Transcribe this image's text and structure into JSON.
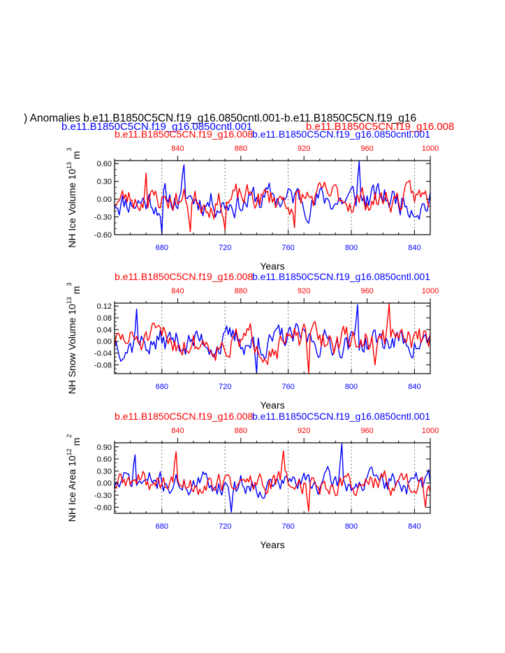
{
  "header": {
    "main_title": ") Anomalies b.e11.B1850C5CN.f19_g16.0850cntl.001-b.e11.B1850C5CN.f19_g16",
    "left_case": "b.e11.B1850C5CN.f19_g16.0850cntl.001",
    "right_case": "b.e11.B1850C5CN.f19_g16.008"
  },
  "colors": {
    "blue": "#0000ff",
    "red": "#ff0000",
    "black": "#000000",
    "grid": "#555555"
  },
  "chart_data": [
    {
      "type": "line",
      "ylabel_main": "NH Ice Volume 10",
      "ylabel_exp": "13",
      "ylabel_unit": " m",
      "ylabel_unit_exp": "3",
      "xlabel": "Years",
      "top_label_red": "b.e11.B1850C5CN.f19_g16.008",
      "top_label_blue": "b.e11.B1850C5CN.f19_g16.0850cntl.001",
      "ylim": [
        -0.6,
        0.65
      ],
      "yticks": [
        "0.60",
        "0.30",
        "0.00",
        "-0.30",
        "-0.60"
      ],
      "ytick_values": [
        0.6,
        0.3,
        0.0,
        -0.3,
        -0.6
      ],
      "bottom_axis": {
        "range": [
          650,
          850
        ],
        "ticks": [
          680,
          720,
          760,
          800,
          840
        ]
      },
      "top_axis": {
        "range": [
          800,
          1000
        ],
        "ticks": [
          840,
          880,
          920,
          960,
          1000
        ]
      },
      "series": [
        {
          "name": "b.e11.B1850C5CN.f19_g16.0850cntl.001",
          "color": "#0000ff",
          "seed": 11,
          "amplitude": 0.26,
          "spikes": [
            [
              680,
              -0.58
            ],
            [
              694,
              0.58
            ],
            [
              805,
              0.64
            ]
          ]
        },
        {
          "name": "b.e11.B1850C5CN.f19_g16.008",
          "color": "#ff0000",
          "seed": 23,
          "amplitude": 0.24,
          "spikes": [
            [
              670,
              0.44
            ],
            [
              698,
              -0.55
            ],
            [
              720,
              -0.52
            ],
            [
              764,
              -0.48
            ]
          ]
        }
      ]
    },
    {
      "type": "line",
      "ylabel_main": "NH Snow Volume 10",
      "ylabel_exp": "13",
      "ylabel_unit": " m",
      "ylabel_unit_exp": "3",
      "xlabel": "Years",
      "top_label_red": "b.e11.B1850C5CN.f19_g16.008",
      "top_label_blue": "b.e11.B1850C5CN.f19_g16.0850cntl.001",
      "ylim": [
        -0.11,
        0.13
      ],
      "yticks": [
        "0.12",
        "0.08",
        "0.04",
        "0.00",
        "-0.04",
        "-0.08"
      ],
      "ytick_values": [
        0.12,
        0.08,
        0.04,
        0.0,
        -0.04,
        -0.08
      ],
      "bottom_axis": {
        "range": [
          650,
          850
        ],
        "ticks": [
          680,
          720,
          760,
          800,
          840
        ]
      },
      "top_axis": {
        "range": [
          800,
          1000
        ],
        "ticks": [
          840,
          880,
          920,
          960,
          1000
        ]
      },
      "series": [
        {
          "name": "b.e11.B1850C5CN.f19_g16.0850cntl.001",
          "color": "#0000ff",
          "seed": 37,
          "amplitude": 0.05,
          "spikes": [
            [
              664,
              0.11
            ],
            [
              740,
              -0.11
            ],
            [
              804,
              0.125
            ]
          ]
        },
        {
          "name": "b.e11.B1850C5CN.f19_g16.008",
          "color": "#ff0000",
          "seed": 51,
          "amplitude": 0.05,
          "spikes": [
            [
              773,
              -0.11
            ],
            [
              824,
              0.13
            ],
            [
              815,
              -0.08
            ]
          ]
        }
      ]
    },
    {
      "type": "line",
      "ylabel_main": "NH Ice Area 10",
      "ylabel_exp": "12",
      "ylabel_unit": " m",
      "ylabel_unit_exp": "2",
      "xlabel": "Years",
      "top_label_red": "b.e11.B1850C5CN.f19_g16.008",
      "top_label_blue": "b.e11.B1850C5CN.f19_g16.0850cntl.001",
      "ylim": [
        -0.75,
        1.0
      ],
      "yticks": [
        "0.90",
        "0.60",
        "0.30",
        "0.00",
        "-0.30",
        "-0.60"
      ],
      "ytick_values": [
        0.9,
        0.6,
        0.3,
        0.0,
        -0.3,
        -0.6
      ],
      "bottom_axis": {
        "range": [
          650,
          850
        ],
        "ticks": [
          680,
          720,
          760,
          800,
          840
        ]
      },
      "top_axis": {
        "range": [
          800,
          1000
        ],
        "ticks": [
          840,
          880,
          920,
          960,
          1000
        ]
      },
      "series": [
        {
          "name": "b.e11.B1850C5CN.f19_g16.0850cntl.001",
          "color": "#0000ff",
          "seed": 71,
          "amplitude": 0.3,
          "spikes": [
            [
              663,
              0.7
            ],
            [
              794,
              0.98
            ],
            [
              724,
              -0.72
            ]
          ]
        },
        {
          "name": "b.e11.B1850C5CN.f19_g16.008",
          "color": "#ff0000",
          "seed": 89,
          "amplitude": 0.3,
          "spikes": [
            [
              689,
              0.78
            ],
            [
              757,
              0.8
            ],
            [
              773,
              -0.7
            ],
            [
              847,
              -0.6
            ]
          ]
        }
      ]
    }
  ]
}
